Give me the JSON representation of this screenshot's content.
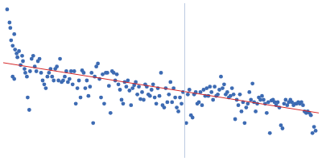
{
  "chart_data": {
    "type": "scatter",
    "xlim": [
      0,
      400
    ],
    "ylim": [
      0,
      200
    ],
    "grid": false,
    "tick_labels": false,
    "series": [
      {
        "type": "scatter",
        "color": "#3d6bb3",
        "marker": "circle",
        "x": [
          5,
          8,
          9,
          10,
          12,
          14,
          15,
          12,
          14,
          17,
          18,
          20,
          22,
          24,
          25,
          27,
          28,
          30,
          31,
          33,
          34,
          36,
          38,
          40,
          42,
          44,
          46,
          48,
          50,
          52,
          54,
          56,
          58,
          60,
          62,
          64,
          66,
          68,
          70,
          72,
          74,
          76,
          78,
          80,
          82,
          84,
          86,
          88,
          90,
          92,
          94,
          96,
          98,
          100,
          102,
          104,
          106,
          108,
          110,
          112,
          114,
          116,
          118,
          120,
          122,
          124,
          126,
          128,
          130,
          132,
          134,
          136,
          138,
          140,
          142,
          144,
          146,
          148,
          150,
          152,
          154,
          156,
          158,
          160,
          162,
          164,
          166,
          168,
          170,
          172,
          174,
          176,
          178,
          180,
          182,
          184,
          186,
          188,
          190,
          192,
          194,
          196,
          198,
          200,
          202,
          204,
          206,
          208,
          210,
          212,
          214,
          216,
          218,
          220,
          222,
          224,
          226,
          228,
          232,
          234,
          236,
          238,
          240,
          242,
          244,
          246,
          248,
          250,
          252,
          254,
          256,
          258,
          260,
          262,
          264,
          266,
          268,
          270,
          272,
          274,
          276,
          278,
          280,
          282,
          284,
          286,
          288,
          290,
          292,
          294,
          296,
          298,
          300,
          302,
          304,
          306,
          308,
          310,
          312,
          314,
          316,
          318,
          320,
          322,
          324,
          326,
          328,
          330,
          332,
          334,
          336,
          338,
          340,
          342,
          344,
          346,
          348,
          350,
          352,
          354,
          356,
          358,
          360,
          362,
          364,
          366,
          368,
          370,
          372,
          374,
          376,
          378,
          380,
          382,
          384,
          386,
          388,
          390,
          392,
          394,
          396
        ],
        "values": [
          192,
          175,
          168,
          152,
          145,
          160,
          140,
          105,
          102,
          135,
          130,
          138,
          120,
          132,
          125,
          115,
          110,
          105,
          78,
          62,
          112,
          128,
          132,
          118,
          112,
          125,
          128,
          110,
          100,
          95,
          90,
          105,
          110,
          115,
          105,
          100,
          115,
          118,
          100,
          128,
          98,
          100,
          105,
          112,
          98,
          102,
          112,
          95,
          112,
          70,
          90,
          100,
          78,
          113,
          110,
          90,
          100,
          80,
          92,
          110,
          45,
          105,
          118,
          122,
          102,
          78,
          108,
          70,
          110,
          110,
          93,
          58,
          112,
          110,
          100,
          108,
          95,
          88,
          75,
          70,
          98,
          92,
          100,
          87,
          68,
          90,
          94,
          98,
          82,
          92,
          76,
          85,
          75,
          95,
          92,
          82,
          80,
          88,
          95,
          78,
          70,
          90,
          80,
          110,
          68,
          65,
          90,
          72,
          82,
          98,
          72,
          90,
          78,
          65,
          60,
          78,
          70,
          85,
          45,
          82,
          88,
          55,
          52,
          82,
          85,
          70,
          72,
          85,
          68,
          88,
          80,
          90,
          80,
          92,
          85,
          75,
          92,
          80,
          82,
          88,
          105,
          90,
          95,
          82,
          85,
          78,
          80,
          90,
          82,
          50,
          75,
          68,
          82,
          60,
          72,
          45,
          65,
          70,
          85,
          75,
          96,
          72,
          60,
          70,
          78,
          75,
          80,
          75,
          70,
          58,
          72,
          32,
          74,
          75,
          72,
          68,
          72,
          65,
          42,
          38,
          70,
          75,
          68,
          72,
          75,
          72,
          68,
          70,
          70,
          72,
          70,
          72,
          68,
          60,
          58,
          60,
          58,
          55,
          32,
          40,
          35
        ]
      },
      {
        "type": "line",
        "color": "#d62728",
        "line_style": "solid",
        "x": [
          0,
          400
        ],
        "values": [
          123,
          58
        ]
      },
      {
        "type": "line",
        "color": "#b8c8e0",
        "line_style": "solid",
        "x": [
          230,
          230
        ],
        "values": [
          0,
          200
        ]
      }
    ]
  }
}
